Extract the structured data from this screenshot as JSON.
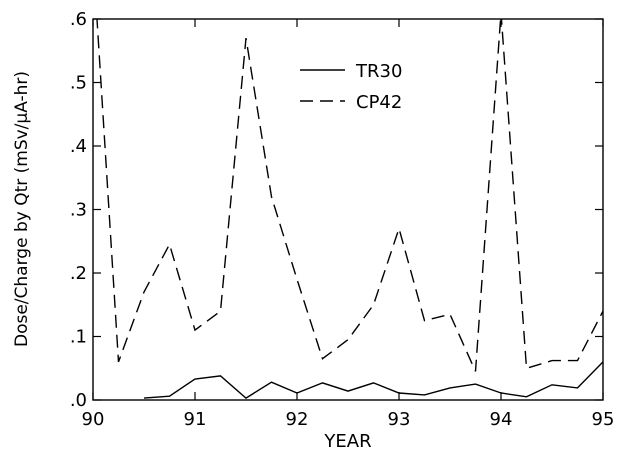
{
  "chart_data": {
    "type": "line",
    "title": "",
    "xlabel": "YEAR",
    "ylabel": "Dose/Charge by Qtr (mSv/μA-hr)",
    "xlim": [
      90,
      95
    ],
    "ylim": [
      0,
      0.6
    ],
    "x_ticks": [
      90,
      91,
      92,
      93,
      94,
      95
    ],
    "x_tick_labels": [
      "90",
      "91",
      "92",
      "93",
      "94",
      "95"
    ],
    "y_ticks": [
      0,
      0.1,
      0.2,
      0.3,
      0.4,
      0.5,
      0.6
    ],
    "y_tick_labels": [
      ".0",
      ".1",
      ".2",
      ".3",
      ".4",
      ".5",
      ".6"
    ],
    "grid": false,
    "legend_position": "top-center",
    "series": [
      {
        "name": "TR30",
        "style": "solid",
        "color": "#000000",
        "x": [
          90.5,
          90.75,
          91.0,
          91.25,
          91.5,
          91.75,
          92.0,
          92.25,
          92.5,
          92.75,
          93.0,
          93.25,
          93.5,
          93.75,
          94.0,
          94.25,
          94.5,
          94.75,
          95.0
        ],
        "y": [
          0.003,
          0.006,
          0.033,
          0.038,
          0.003,
          0.028,
          0.011,
          0.027,
          0.014,
          0.027,
          0.011,
          0.008,
          0.019,
          0.025,
          0.011,
          0.005,
          0.024,
          0.019,
          0.06
        ]
      },
      {
        "name": "CP42",
        "style": "dashed",
        "color": "#000000",
        "x": [
          90.0,
          90.25,
          90.5,
          90.75,
          91.0,
          91.25,
          91.5,
          91.75,
          92.0,
          92.25,
          92.5,
          92.75,
          93.0,
          93.25,
          93.5,
          93.75,
          94.0,
          94.25,
          94.5,
          94.75,
          95.0
        ],
        "y": [
          0.7,
          0.06,
          0.17,
          0.245,
          0.11,
          0.14,
          0.57,
          0.32,
          0.19,
          0.065,
          0.095,
          0.15,
          0.27,
          0.125,
          0.135,
          0.045,
          0.61,
          0.05,
          0.062,
          0.062,
          0.14
        ]
      }
    ]
  }
}
